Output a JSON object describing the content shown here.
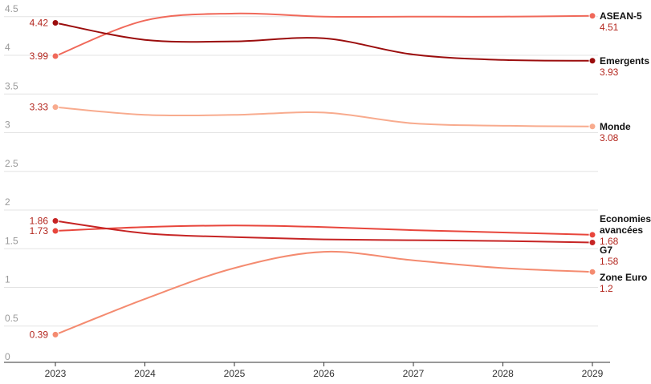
{
  "chart_data": {
    "type": "line",
    "categories": [
      "2023",
      "2024",
      "2025",
      "2026",
      "2027",
      "2028",
      "2029"
    ],
    "series": [
      {
        "name": "ASEAN-5",
        "color": "#f0695a",
        "values": [
          3.99,
          4.45,
          4.54,
          4.5,
          4.5,
          4.5,
          4.51
        ]
      },
      {
        "name": "Emergents",
        "color": "#9b0d0d",
        "values": [
          4.42,
          4.2,
          4.18,
          4.22,
          4.01,
          3.94,
          3.93
        ]
      },
      {
        "name": "Monde",
        "color": "#f8ab8e",
        "values": [
          3.33,
          3.23,
          3.23,
          3.26,
          3.12,
          3.09,
          3.08
        ]
      },
      {
        "name": "Economies avancées",
        "color": "#e8463c",
        "values": [
          1.73,
          1.78,
          1.8,
          1.78,
          1.74,
          1.71,
          1.68
        ]
      },
      {
        "name": "G7",
        "color": "#c62424",
        "values": [
          1.86,
          1.7,
          1.65,
          1.62,
          1.61,
          1.6,
          1.58
        ]
      },
      {
        "name": "Zone Euro",
        "color": "#f48b70",
        "values": [
          0.39,
          0.85,
          1.25,
          1.46,
          1.35,
          1.25,
          1.2
        ]
      }
    ],
    "ylim": [
      0,
      4.5
    ],
    "yticks": [
      0,
      0.5,
      1,
      1.5,
      2,
      2.5,
      3,
      3.5,
      4,
      4.5
    ],
    "grid": true
  }
}
